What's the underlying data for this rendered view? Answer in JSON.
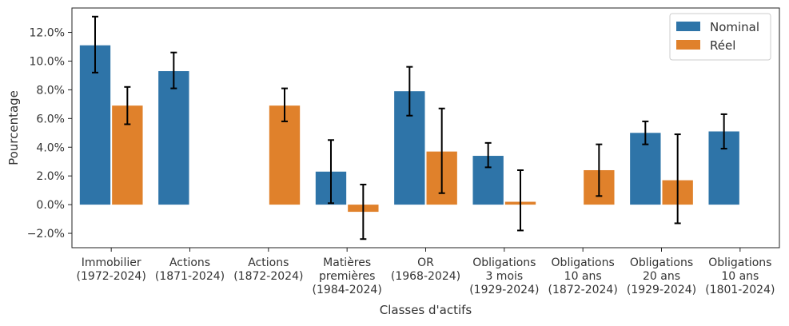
{
  "chart_data": {
    "type": "bar",
    "xlabel": "Classes d'actifs",
    "ylabel": "Pourcentage",
    "ylim": [
      -3.0,
      13.7
    ],
    "yticks": [
      -2.0,
      0.0,
      2.0,
      4.0,
      6.0,
      8.0,
      10.0,
      12.0
    ],
    "ytick_labels": [
      "−2.0%",
      "0.0%",
      "2.0%",
      "4.0%",
      "6.0%",
      "8.0%",
      "10.0%",
      "12.0%"
    ],
    "categories": [
      [
        "Immobilier",
        "(1972-2024)"
      ],
      [
        "Actions",
        "(1871-2024)"
      ],
      [
        "Actions",
        "(1872-2024)"
      ],
      [
        "Matières",
        "premières",
        "(1984-2024)"
      ],
      [
        "OR",
        "(1968-2024)"
      ],
      [
        "Obligations",
        "3 mois",
        "(1929-2024)"
      ],
      [
        "Obligations",
        "10 ans",
        "(1872-2024)"
      ],
      [
        "Obligations",
        "20 ans",
        "(1929-2024)"
      ],
      [
        "Obligations",
        "10 ans",
        "(1801-2024)"
      ]
    ],
    "series": [
      {
        "name": "Nominal",
        "color": "#2e74a8",
        "values": [
          11.1,
          9.3,
          null,
          2.3,
          7.9,
          3.4,
          null,
          5.0,
          5.1
        ],
        "err_low": [
          9.2,
          8.1,
          null,
          0.1,
          6.2,
          2.6,
          null,
          4.2,
          3.9
        ],
        "err_high": [
          13.1,
          10.6,
          null,
          4.5,
          9.6,
          4.3,
          null,
          5.8,
          6.3
        ]
      },
      {
        "name": "Réel",
        "color": "#e0812b",
        "values": [
          6.9,
          null,
          6.9,
          -0.5,
          3.7,
          0.2,
          2.4,
          1.7,
          null
        ],
        "err_low": [
          5.6,
          null,
          5.8,
          -2.4,
          0.8,
          -1.8,
          0.6,
          -1.3,
          null
        ],
        "err_high": [
          8.2,
          null,
          8.1,
          1.4,
          6.7,
          2.4,
          4.2,
          4.9,
          null
        ]
      }
    ],
    "legend": {
      "position": "top-right"
    },
    "grid": false
  }
}
